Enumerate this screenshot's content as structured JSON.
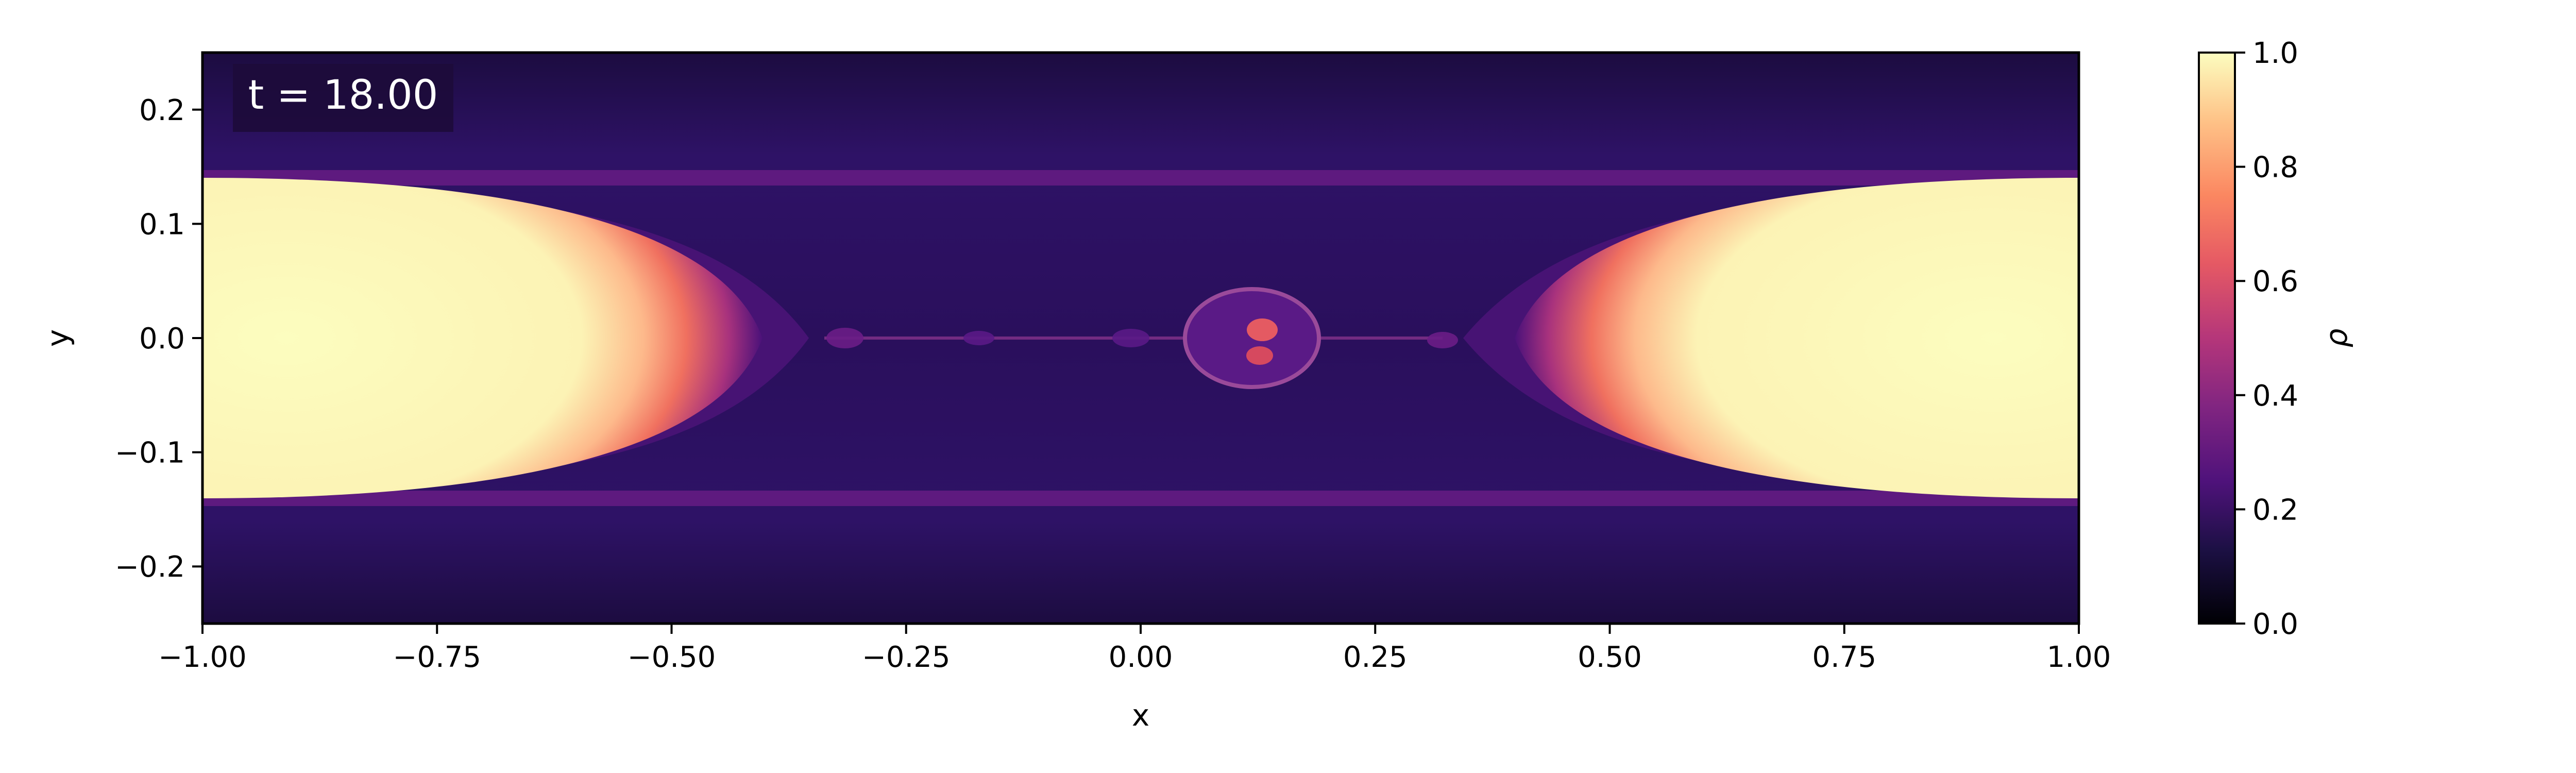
{
  "chart_data": {
    "type": "heatmap",
    "title": "",
    "annotation": "t = 18.00",
    "xlabel": "x",
    "ylabel": "y",
    "colorbar_label": "ρ",
    "colormap": "magma",
    "xlim": [
      -1.0,
      1.0
    ],
    "ylim": [
      -0.25,
      0.25
    ],
    "clim": [
      0.0,
      1.0
    ],
    "xticks": [
      -1.0,
      -0.75,
      -0.5,
      -0.25,
      0.0,
      0.25,
      0.5,
      0.75,
      1.0
    ],
    "xtick_labels": [
      "−1.00",
      "−0.75",
      "−0.50",
      "−0.25",
      "0.00",
      "0.25",
      "0.50",
      "0.75",
      "1.00"
    ],
    "yticks": [
      0.2,
      0.1,
      0.0,
      -0.1,
      -0.2
    ],
    "ytick_labels": [
      "0.2",
      "0.1",
      "0.0",
      "−0.1",
      "−0.2"
    ],
    "cticks": [
      1.0,
      0.8,
      0.6,
      0.4,
      0.2,
      0.0
    ],
    "ctick_labels": [
      "1.0",
      "0.8",
      "0.6",
      "0.4",
      "0.2",
      "0.0"
    ],
    "colors": {
      "high": "#fcfdbf",
      "mid": "#de4968",
      "low": "#2c115f",
      "background_field": "#2a0f5c",
      "annotation_box": "#1d0b3a"
    }
  }
}
